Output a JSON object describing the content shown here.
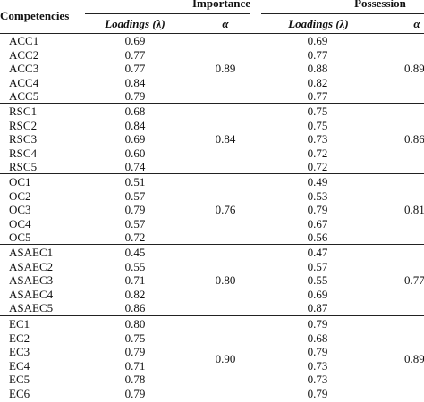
{
  "header": {
    "competencies": "Competencies",
    "importance": "Importance",
    "possession": "Possession",
    "loadings": "Loadings (λ)",
    "alpha": "α"
  },
  "groups": [
    {
      "items": [
        {
          "code": "ACC1",
          "imp": "0.69",
          "pos": "0.69"
        },
        {
          "code": "ACC2",
          "imp": "0.77",
          "pos": "0.77"
        },
        {
          "code": "ACC3",
          "imp": "0.77",
          "pos": "0.88"
        },
        {
          "code": "ACC4",
          "imp": "0.84",
          "pos": "0.82"
        },
        {
          "code": "ACC5",
          "imp": "0.79",
          "pos": "0.77"
        }
      ],
      "alpha_imp": "0.89",
      "alpha_pos": "0.89"
    },
    {
      "items": [
        {
          "code": "RSC1",
          "imp": "0.68",
          "pos": "0.75"
        },
        {
          "code": "RSC2",
          "imp": "0.84",
          "pos": "0.75"
        },
        {
          "code": "RSC3",
          "imp": "0.69",
          "pos": "0.73"
        },
        {
          "code": "RSC4",
          "imp": "0.60",
          "pos": "0.72"
        },
        {
          "code": "RSC5",
          "imp": "0.74",
          "pos": "0.72"
        }
      ],
      "alpha_imp": "0.84",
      "alpha_pos": "0.86"
    },
    {
      "items": [
        {
          "code": "OC1",
          "imp": "0.51",
          "pos": "0.49"
        },
        {
          "code": "OC2",
          "imp": "0.57",
          "pos": "0.53"
        },
        {
          "code": "OC3",
          "imp": "0.79",
          "pos": "0.79"
        },
        {
          "code": "OC4",
          "imp": "0.57",
          "pos": "0.67"
        },
        {
          "code": "OC5",
          "imp": "0.72",
          "pos": "0.56"
        }
      ],
      "alpha_imp": "0.76",
      "alpha_pos": "0.81"
    },
    {
      "items": [
        {
          "code": "ASAEC1",
          "imp": "0.45",
          "pos": "0.47"
        },
        {
          "code": "ASAEC2",
          "imp": "0.55",
          "pos": "0.57"
        },
        {
          "code": "ASAEC3",
          "imp": "0.71",
          "pos": "0.55"
        },
        {
          "code": "ASAEC4",
          "imp": "0.82",
          "pos": "0.69"
        },
        {
          "code": "ASAEC5",
          "imp": "0.86",
          "pos": "0.87"
        }
      ],
      "alpha_imp": "0.80",
      "alpha_pos": "0.77"
    },
    {
      "items": [
        {
          "code": "EC1",
          "imp": "0.80",
          "pos": "0.79"
        },
        {
          "code": "EC2",
          "imp": "0.75",
          "pos": "0.68"
        },
        {
          "code": "EC3",
          "imp": "0.79",
          "pos": "0.79"
        },
        {
          "code": "EC4",
          "imp": "0.71",
          "pos": "0.73"
        },
        {
          "code": "EC5",
          "imp": "0.78",
          "pos": "0.73"
        },
        {
          "code": "EC6",
          "imp": "0.79",
          "pos": "0.79"
        }
      ],
      "alpha_imp": "0.90",
      "alpha_pos": "0.89"
    }
  ]
}
